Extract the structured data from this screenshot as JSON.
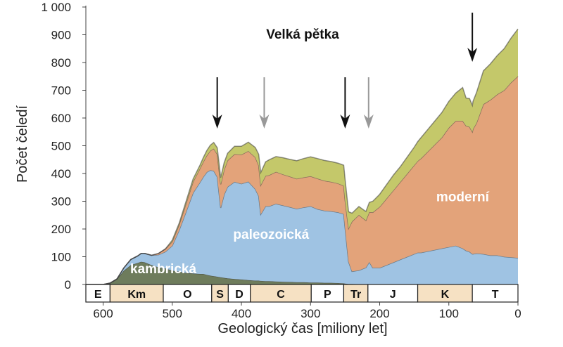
{
  "chart_data": {
    "type": "area",
    "title": "Velká pětka",
    "xlabel": "Geologický čas [miliony let]",
    "ylabel": "Počet čeledí",
    "xlim": [
      625,
      0
    ],
    "ylim": [
      0,
      1000
    ],
    "x_ticks": [
      {
        "value": 600,
        "label": "600"
      },
      {
        "value": 500,
        "label": "500"
      },
      {
        "value": 400,
        "label": "400"
      },
      {
        "value": 300,
        "label": "300"
      },
      {
        "value": 200,
        "label": "200"
      },
      {
        "value": 100,
        "label": "100"
      },
      {
        "value": 0,
        "label": "0"
      }
    ],
    "y_ticks": [
      {
        "value": 0,
        "label": "0"
      },
      {
        "value": 100,
        "label": "100"
      },
      {
        "value": 200,
        "label": "200"
      },
      {
        "value": 300,
        "label": "300"
      },
      {
        "value": 400,
        "label": "400"
      },
      {
        "value": 500,
        "label": "500"
      },
      {
        "value": 600,
        "label": "600"
      },
      {
        "value": 700,
        "label": "700"
      },
      {
        "value": 800,
        "label": "800"
      },
      {
        "value": 900,
        "label": "900"
      },
      {
        "value": 1000,
        "label": "1 000"
      }
    ],
    "x": [
      625,
      600,
      590,
      580,
      570,
      560,
      550,
      545,
      540,
      530,
      520,
      510,
      500,
      490,
      480,
      470,
      460,
      455,
      450,
      445,
      440,
      435,
      430,
      425,
      420,
      410,
      400,
      390,
      380,
      375,
      372,
      365,
      360,
      350,
      340,
      330,
      320,
      310,
      300,
      290,
      280,
      270,
      260,
      252,
      250,
      245,
      240,
      230,
      220,
      215,
      210,
      200,
      190,
      180,
      170,
      160,
      150,
      145,
      140,
      130,
      120,
      110,
      100,
      90,
      80,
      75,
      70,
      66,
      65,
      60,
      50,
      40,
      30,
      20,
      10,
      0
    ],
    "series": [
      {
        "name": "kambrická",
        "color": "#6e7c5c",
        "values": [
          0,
          0,
          5,
          20,
          50,
          70,
          78,
          82,
          80,
          70,
          62,
          58,
          50,
          46,
          42,
          40,
          38,
          38,
          35,
          32,
          30,
          28,
          26,
          24,
          22,
          20,
          18,
          16,
          14,
          14,
          13,
          12,
          12,
          11,
          10,
          9,
          8,
          8,
          7,
          7,
          6,
          6,
          5,
          4,
          3,
          2,
          2,
          1,
          1,
          1,
          0,
          0,
          0,
          0,
          0,
          0,
          0,
          0,
          0,
          0,
          0,
          0,
          0,
          0,
          0,
          0,
          0,
          0,
          0,
          0,
          0,
          0,
          0,
          0,
          0,
          0
        ]
      },
      {
        "name": "paleozoická",
        "color": "#9fc3e3",
        "values": [
          0,
          0,
          0,
          0,
          10,
          20,
          25,
          30,
          32,
          35,
          45,
          60,
          90,
          150,
          220,
          290,
          330,
          350,
          370,
          380,
          380,
          360,
          250,
          300,
          330,
          350,
          345,
          355,
          330,
          305,
          240,
          270,
          270,
          280,
          275,
          270,
          265,
          270,
          275,
          265,
          260,
          258,
          255,
          250,
          200,
          80,
          45,
          50,
          60,
          80,
          60,
          60,
          70,
          80,
          90,
          100,
          110,
          115,
          115,
          120,
          125,
          130,
          135,
          140,
          130,
          122,
          118,
          110,
          110,
          112,
          110,
          105,
          105,
          100,
          98,
          96
        ]
      },
      {
        "name": "moderní",
        "color": "#e3a37a",
        "values": [
          0,
          0,
          0,
          0,
          0,
          0,
          0,
          0,
          0,
          0,
          5,
          10,
          15,
          20,
          30,
          40,
          50,
          55,
          60,
          70,
          80,
          82,
          85,
          90,
          95,
          100,
          105,
          110,
          115,
          110,
          105,
          110,
          112,
          115,
          112,
          110,
          108,
          108,
          108,
          110,
          108,
          106,
          104,
          102,
          100,
          120,
          180,
          200,
          170,
          180,
          200,
          220,
          240,
          260,
          280,
          300,
          320,
          330,
          340,
          360,
          380,
          400,
          430,
          450,
          460,
          450,
          450,
          440,
          450,
          470,
          540,
          560,
          580,
          600,
          630,
          655
        ]
      },
      {
        "name": "",
        "color": "#c4c86a",
        "values": [
          0,
          0,
          0,
          0,
          0,
          0,
          0,
          0,
          0,
          0,
          0,
          0,
          5,
          5,
          8,
          10,
          12,
          15,
          18,
          20,
          22,
          23,
          24,
          25,
          26,
          28,
          30,
          32,
          35,
          40,
          45,
          50,
          55,
          55,
          60,
          62,
          65,
          68,
          70,
          72,
          73,
          73,
          73,
          74,
          75,
          60,
          30,
          30,
          32,
          35,
          40,
          45,
          50,
          55,
          55,
          60,
          65,
          70,
          75,
          80,
          85,
          90,
          95,
          100,
          120,
          100,
          102,
          95,
          100,
          110,
          120,
          130,
          140,
          150,
          160,
          170
        ]
      }
    ],
    "area_labels": [
      {
        "text": "moderní",
        "x": 80,
        "y": 300,
        "color": "#ffffff"
      },
      {
        "text": "paleozoická",
        "x": 357,
        "y": 165,
        "color": "#ffffff"
      },
      {
        "text": "kambrická",
        "x": 513,
        "y": 40,
        "color": "#ffffff"
      }
    ],
    "extinction_arrows": [
      {
        "x": 435,
        "color": "#111111"
      },
      {
        "x": 367,
        "color": "#999999"
      },
      {
        "x": 250,
        "color": "#111111"
      },
      {
        "x": 216,
        "color": "#999999"
      },
      {
        "x": 66,
        "color": "#111111"
      }
    ],
    "periods": [
      {
        "label": "E",
        "start": 625,
        "end": 590,
        "shaded": false
      },
      {
        "label": "Km",
        "start": 590,
        "end": 513,
        "shaded": true
      },
      {
        "label": "O",
        "start": 513,
        "end": 443,
        "shaded": false
      },
      {
        "label": "S",
        "start": 443,
        "end": 419,
        "shaded": true
      },
      {
        "label": "D",
        "start": 419,
        "end": 387,
        "shaded": false
      },
      {
        "label": "C",
        "start": 387,
        "end": 299,
        "shaded": true
      },
      {
        "label": "P",
        "start": 299,
        "end": 252,
        "shaded": false
      },
      {
        "label": "Tr",
        "start": 252,
        "end": 217,
        "shaded": true
      },
      {
        "label": "J",
        "start": 217,
        "end": 145,
        "shaded": false
      },
      {
        "label": "K",
        "start": 145,
        "end": 66,
        "shaded": true
      },
      {
        "label": "T",
        "start": 66,
        "end": 0,
        "shaded": false
      }
    ],
    "period_colors": {
      "shaded": "#f6e1c3",
      "plain": "#ffffff"
    },
    "grid": false
  }
}
